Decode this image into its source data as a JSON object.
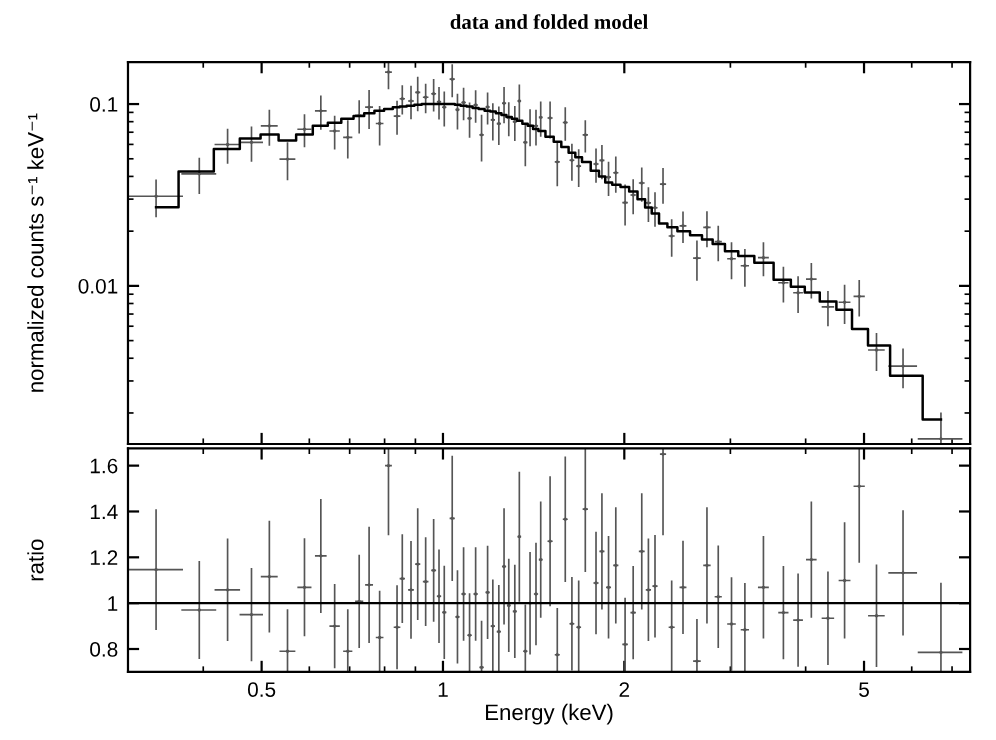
{
  "chart_data": [
    {
      "type": "scatter",
      "title": "data and folded model",
      "ylabel": "normalized counts s⁻¹ keV⁻¹",
      "log": "xy",
      "marker": "none",
      "xlim": [
        0.3,
        7.5
      ],
      "ylim": [
        0.00135,
        0.17
      ],
      "xticks": [
        0.5,
        1,
        2,
        5
      ],
      "yticks": [
        0.01,
        0.1
      ],
      "tick_labels": "y",
      "series": [
        {
          "color": "#555555",
          "x": [
            0.334,
            0.394,
            0.439,
            0.481,
            0.515,
            0.552,
            0.589,
            0.627,
            0.661,
            0.695,
            0.726,
            0.754,
            0.785,
            0.812,
            0.839,
            0.856,
            0.885,
            0.908,
            0.936,
            0.965,
            0.985,
            1.005,
            1.036,
            1.057,
            1.082,
            1.107,
            1.133,
            1.159,
            1.186,
            1.21,
            1.238,
            1.263,
            1.286,
            1.316,
            1.339,
            1.37,
            1.395,
            1.427,
            1.453,
            1.506,
            1.548,
            1.596,
            1.637,
            1.68,
            1.723,
            1.795,
            1.836,
            1.883,
            1.936,
            2.006,
            2.069,
            2.138,
            2.193,
            2.249,
            2.319,
            2.397,
            2.503,
            2.64,
            2.743,
            2.864,
            3.013,
            3.171,
            3.404,
            3.674,
            3.886,
            4.088,
            4.356,
            4.642,
            4.909,
            5.244,
            5.804,
            6.709
          ],
          "values": [
            0.0311,
            0.0413,
            0.0599,
            0.0615,
            0.0759,
            0.0498,
            0.0727,
            0.0917,
            0.0711,
            0.0656,
            0.0867,
            0.0961,
            0.0782,
            0.15,
            0.0859,
            0.107,
            0.104,
            0.116,
            0.109,
            0.114,
            0.103,
            0.096,
            0.137,
            0.0931,
            0.102,
            0.0834,
            0.0988,
            0.0677,
            0.0963,
            0.0819,
            0.078,
            0.101,
            0.0842,
            0.08,
            0.104,
            0.0616,
            0.076,
            0.0759,
            0.0845,
            0.0838,
            0.0481,
            0.0792,
            0.0491,
            0.0456,
            0.0677,
            0.0468,
            0.049,
            0.0396,
            0.0419,
            0.0287,
            0.0316,
            0.0368,
            0.0286,
            0.0269,
            0.0363,
            0.0188,
            0.0214,
            0.0142,
            0.021,
            0.0175,
            0.0141,
            0.0129,
            0.0143,
            0.0104,
            0.00917,
            0.0109,
            0.00766,
            0.00813,
            0.00876,
            0.00444,
            0.00362,
            0.00144
          ],
          "errors": [
            0.007,
            0.0089,
            0.0125,
            0.0129,
            0.0163,
            0.0113,
            0.0143,
            0.0186,
            0.0142,
            0.0149,
            0.0172,
            0.0223,
            0.0184,
            0.0282,
            0.0173,
            0.0184,
            0.0206,
            0.0238,
            0.019,
            0.022,
            0.02,
            0.02,
            0.027,
            0.0198,
            0.0196,
            0.0175,
            0.019,
            0.0188,
            0.0184,
            0.0182,
            0.0178,
            0.0218,
            0.017,
            0.0166,
            0.0227,
            0.0156,
            0.0167,
            0.0161,
            0.0178,
            0.0185,
            0.0124,
            0.0157,
            0.0108,
            0.0102,
            0.013,
            0.0095,
            0.01,
            0.0081,
            0.009,
            0.007,
            0.0066,
            0.0075,
            0.0059,
            0.0055,
            0.0077,
            0.0042,
            0.004,
            0.0034,
            0.0045,
            0.0037,
            0.0031,
            0.0029,
            0.0029,
            0.0022,
            0.002,
            0.0023,
            0.0016,
            0.0019,
            0.0019,
            0.001,
            0.00086,
            0.00055
          ],
          "xerrors": [
            0.035,
            0.025,
            0.02,
            0.02,
            0.015,
            0.015,
            0.014,
            0.012,
            0.011,
            0.01,
            0.009,
            0.009,
            0.009,
            0.008,
            0.008,
            0.006,
            0.007,
            0.006,
            0.007,
            0.006,
            0.005,
            0.005,
            0.007,
            0.005,
            0.006,
            0.006,
            0.006,
            0.006,
            0.006,
            0.006,
            0.006,
            0.006,
            0.005,
            0.006,
            0.005,
            0.007,
            0.005,
            0.007,
            0.006,
            0.01,
            0.01,
            0.01,
            0.01,
            0.01,
            0.012,
            0.012,
            0.012,
            0.012,
            0.013,
            0.015,
            0.015,
            0.017,
            0.015,
            0.015,
            0.02,
            0.02,
            0.025,
            0.03,
            0.03,
            0.03,
            0.04,
            0.04,
            0.06,
            0.06,
            0.06,
            0.07,
            0.09,
            0.09,
            0.09,
            0.15,
            0.3,
            0.55
          ]
        },
        {
          "type": "step",
          "color": "#000000",
          "x": [
            0.334,
            0.394,
            0.439,
            0.481,
            0.515,
            0.552,
            0.589,
            0.627,
            0.661,
            0.695,
            0.726,
            0.754,
            0.785,
            0.812,
            0.839,
            0.856,
            0.885,
            0.908,
            0.936,
            0.965,
            0.985,
            1.005,
            1.036,
            1.057,
            1.082,
            1.107,
            1.133,
            1.159,
            1.186,
            1.21,
            1.238,
            1.263,
            1.286,
            1.316,
            1.339,
            1.37,
            1.395,
            1.427,
            1.453,
            1.506,
            1.548,
            1.596,
            1.637,
            1.68,
            1.723,
            1.795,
            1.836,
            1.883,
            1.936,
            2.006,
            2.069,
            2.138,
            2.193,
            2.249,
            2.319,
            2.397,
            2.503,
            2.64,
            2.743,
            2.864,
            3.013,
            3.171,
            3.404,
            3.674,
            3.886,
            4.088,
            4.356,
            4.642,
            4.909,
            5.244,
            5.804,
            6.709
          ],
          "values": [
            0.0271,
            0.0426,
            0.0566,
            0.0647,
            0.068,
            0.063,
            0.068,
            0.076,
            0.079,
            0.083,
            0.086,
            0.089,
            0.092,
            0.094,
            0.096,
            0.097,
            0.098,
            0.099,
            0.1,
            0.1,
            0.1,
            0.1,
            0.1,
            0.099,
            0.098,
            0.097,
            0.095,
            0.094,
            0.092,
            0.091,
            0.089,
            0.087,
            0.085,
            0.083,
            0.081,
            0.078,
            0.076,
            0.073,
            0.071,
            0.066,
            0.062,
            0.058,
            0.054,
            0.051,
            0.048,
            0.043,
            0.04,
            0.037,
            0.036,
            0.035,
            0.033,
            0.03,
            0.027,
            0.025,
            0.022,
            0.021,
            0.02,
            0.019,
            0.018,
            0.017,
            0.0155,
            0.0146,
            0.0134,
            0.0108,
            0.0099,
            0.0092,
            0.0082,
            0.0074,
            0.0058,
            0.0047,
            0.0032,
            0.00184
          ]
        }
      ]
    },
    {
      "type": "scatter",
      "xlabel": "Energy (keV)",
      "ylabel": "ratio",
      "log": "x",
      "marker": "none",
      "xlim": [
        0.3,
        7.5
      ],
      "ylim": [
        0.7,
        1.675
      ],
      "xticks": [
        0.5,
        1,
        2,
        5
      ],
      "yticks": [
        0.8,
        1,
        1.2,
        1.4,
        1.6
      ],
      "ref_lines": [
        {
          "axis": "y",
          "value": 1,
          "color": "#000000"
        }
      ],
      "series": [
        {
          "color": "#555555",
          "x": [
            0.334,
            0.394,
            0.439,
            0.481,
            0.515,
            0.552,
            0.589,
            0.627,
            0.661,
            0.695,
            0.726,
            0.754,
            0.785,
            0.812,
            0.839,
            0.856,
            0.885,
            0.908,
            0.936,
            0.965,
            0.985,
            1.005,
            1.036,
            1.057,
            1.082,
            1.107,
            1.133,
            1.159,
            1.186,
            1.21,
            1.238,
            1.263,
            1.286,
            1.316,
            1.339,
            1.37,
            1.395,
            1.427,
            1.453,
            1.506,
            1.548,
            1.596,
            1.637,
            1.68,
            1.723,
            1.795,
            1.836,
            1.883,
            1.936,
            2.006,
            2.069,
            2.138,
            2.193,
            2.249,
            2.319,
            2.397,
            2.503,
            2.64,
            2.743,
            2.864,
            3.013,
            3.171,
            3.404,
            3.674,
            3.886,
            4.088,
            4.356,
            4.642,
            4.909,
            5.244,
            5.804,
            6.709
          ],
          "values": [
            1.146,
            0.97,
            1.058,
            0.95,
            1.116,
            0.79,
            1.069,
            1.206,
            0.9,
            0.79,
            1.008,
            1.08,
            0.85,
            1.6,
            0.895,
            1.107,
            1.058,
            1.17,
            1.094,
            1.143,
            1.03,
            0.96,
            1.37,
            0.94,
            1.04,
            0.86,
            1.04,
            0.72,
            1.047,
            0.9,
            0.876,
            1.16,
            0.99,
            0.964,
            1.29,
            0.79,
            1.0,
            1.04,
            1.19,
            1.27,
            0.775,
            1.366,
            0.91,
            0.895,
            1.41,
            1.088,
            1.226,
            1.069,
            1.165,
            0.82,
            0.959,
            1.226,
            1.058,
            1.074,
            1.65,
            0.895,
            1.069,
            0.747,
            1.165,
            1.028,
            0.909,
            0.884,
            1.069,
            0.959,
            0.926,
            1.19,
            0.934,
            1.099,
            1.51,
            0.945,
            1.132,
            0.785
          ],
          "errors": [
            0.26,
            0.21,
            0.22,
            0.2,
            0.24,
            0.18,
            0.21,
            0.245,
            0.18,
            0.18,
            0.2,
            0.25,
            0.2,
            0.3,
            0.18,
            0.19,
            0.21,
            0.24,
            0.19,
            0.22,
            0.2,
            0.2,
            0.27,
            0.2,
            0.2,
            0.18,
            0.2,
            0.2,
            0.2,
            0.2,
            0.2,
            0.25,
            0.2,
            0.2,
            0.28,
            0.2,
            0.22,
            0.22,
            0.25,
            0.28,
            0.2,
            0.27,
            0.2,
            0.2,
            0.27,
            0.22,
            0.25,
            0.22,
            0.25,
            0.2,
            0.2,
            0.25,
            0.22,
            0.22,
            0.35,
            0.2,
            0.2,
            0.18,
            0.25,
            0.22,
            0.2,
            0.2,
            0.22,
            0.2,
            0.2,
            0.25,
            0.2,
            0.25,
            0.33,
            0.22,
            0.27,
            0.3
          ],
          "xerrors": [
            0.035,
            0.025,
            0.02,
            0.02,
            0.015,
            0.015,
            0.014,
            0.012,
            0.011,
            0.01,
            0.009,
            0.009,
            0.009,
            0.008,
            0.008,
            0.006,
            0.007,
            0.006,
            0.007,
            0.006,
            0.005,
            0.005,
            0.007,
            0.005,
            0.006,
            0.006,
            0.006,
            0.006,
            0.006,
            0.006,
            0.006,
            0.006,
            0.005,
            0.006,
            0.005,
            0.007,
            0.005,
            0.007,
            0.006,
            0.01,
            0.01,
            0.01,
            0.01,
            0.01,
            0.012,
            0.012,
            0.012,
            0.012,
            0.013,
            0.015,
            0.015,
            0.017,
            0.015,
            0.015,
            0.02,
            0.02,
            0.025,
            0.03,
            0.03,
            0.03,
            0.04,
            0.04,
            0.06,
            0.06,
            0.06,
            0.07,
            0.09,
            0.09,
            0.09,
            0.15,
            0.3,
            0.55
          ]
        }
      ]
    }
  ]
}
